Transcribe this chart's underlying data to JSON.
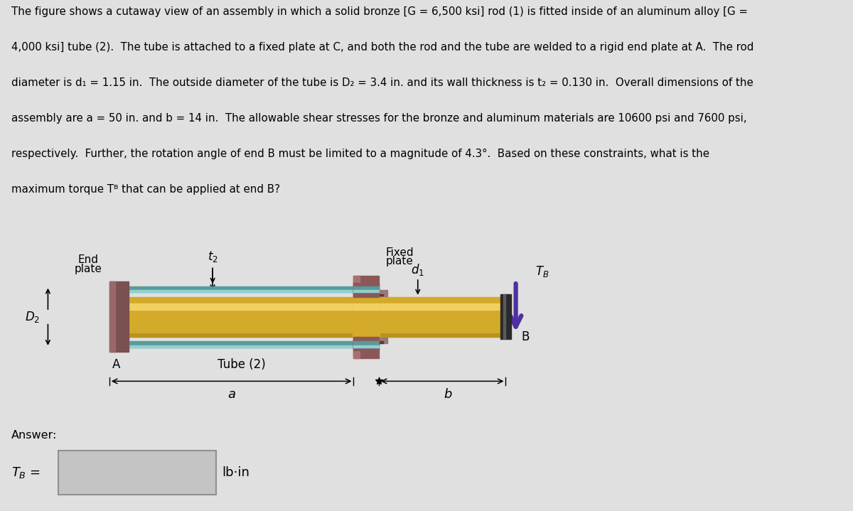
{
  "fig_bg": "#e0e0e0",
  "rod_color_dark": "#b8941e",
  "rod_color_mid": "#d4aa2a",
  "rod_color_light": "#f0d060",
  "tube_color_dark": "#5a9a9a",
  "tube_color_mid": "#70b8b8",
  "tube_color_light": "#90d0d0",
  "endplate_color": "#7a5050",
  "fixedplate_color": "#8a5858",
  "cap_color": "#3a3a3a",
  "torque_color": "#5030a0",
  "dim_color": "#000000",
  "text_color": "#000000",
  "problem_text_line1": "The figure shows a cutaway view of an assembly in which a solid bronze [G = 6,500 ksi] rod (1) is fitted inside of an aluminum alloy [G =",
  "problem_text_line2": "4,000 ksi] tube (2).  The tube is attached to a fixed plate at C, and both the rod and the tube are welded to a rigid end plate at A.  The rod",
  "problem_text_line3": "diameter is d₁ = 1.15 in.  The outside diameter of the tube is D₂ = 3.4 in. and its wall thickness is t₂ = 0.130 in.  Overall dimensions of the",
  "problem_text_line4": "assembly are a = 50 in. and b = 14 in.  The allowable shear stresses for the bronze and aluminum materials are 10600 psi and 7600 psi,",
  "problem_text_line5": "respectively.  Further, the rotation angle of end B must be limited to a magnitude of 4.3°.  Based on these constraints, what is the",
  "problem_text_line6": "maximum torque Tᴮ that can be applied at end B?"
}
